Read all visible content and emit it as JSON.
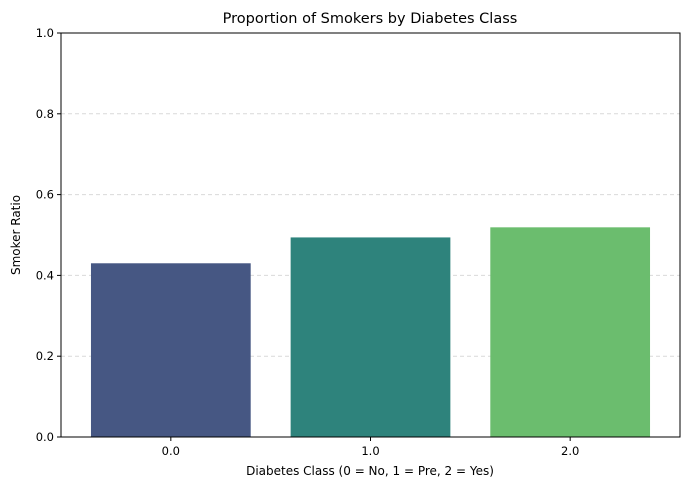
{
  "chart_data": {
    "type": "bar",
    "title": "Proportion of Smokers by Diabetes Class",
    "xlabel": "Diabetes Class (0 = No, 1 = Pre, 2 = Yes)",
    "ylabel": "Smoker Ratio",
    "categories": [
      "0.0",
      "1.0",
      "2.0"
    ],
    "values": [
      0.43,
      0.494,
      0.519
    ],
    "colors": [
      "#472d7b",
      "#2c8178",
      "#6abd6b"
    ],
    "bar_colors": [
      "#465783",
      "#2e837c",
      "#6bbd6e"
    ],
    "ylim": [
      0,
      1
    ],
    "yticks": [
      "0.0",
      "0.2",
      "0.4",
      "0.6",
      "0.8",
      "1.0"
    ],
    "ytick_values": [
      0,
      0.2,
      0.4,
      0.6,
      0.8,
      1.0
    ],
    "grid": "horizontal-dashed",
    "legend": "none"
  }
}
